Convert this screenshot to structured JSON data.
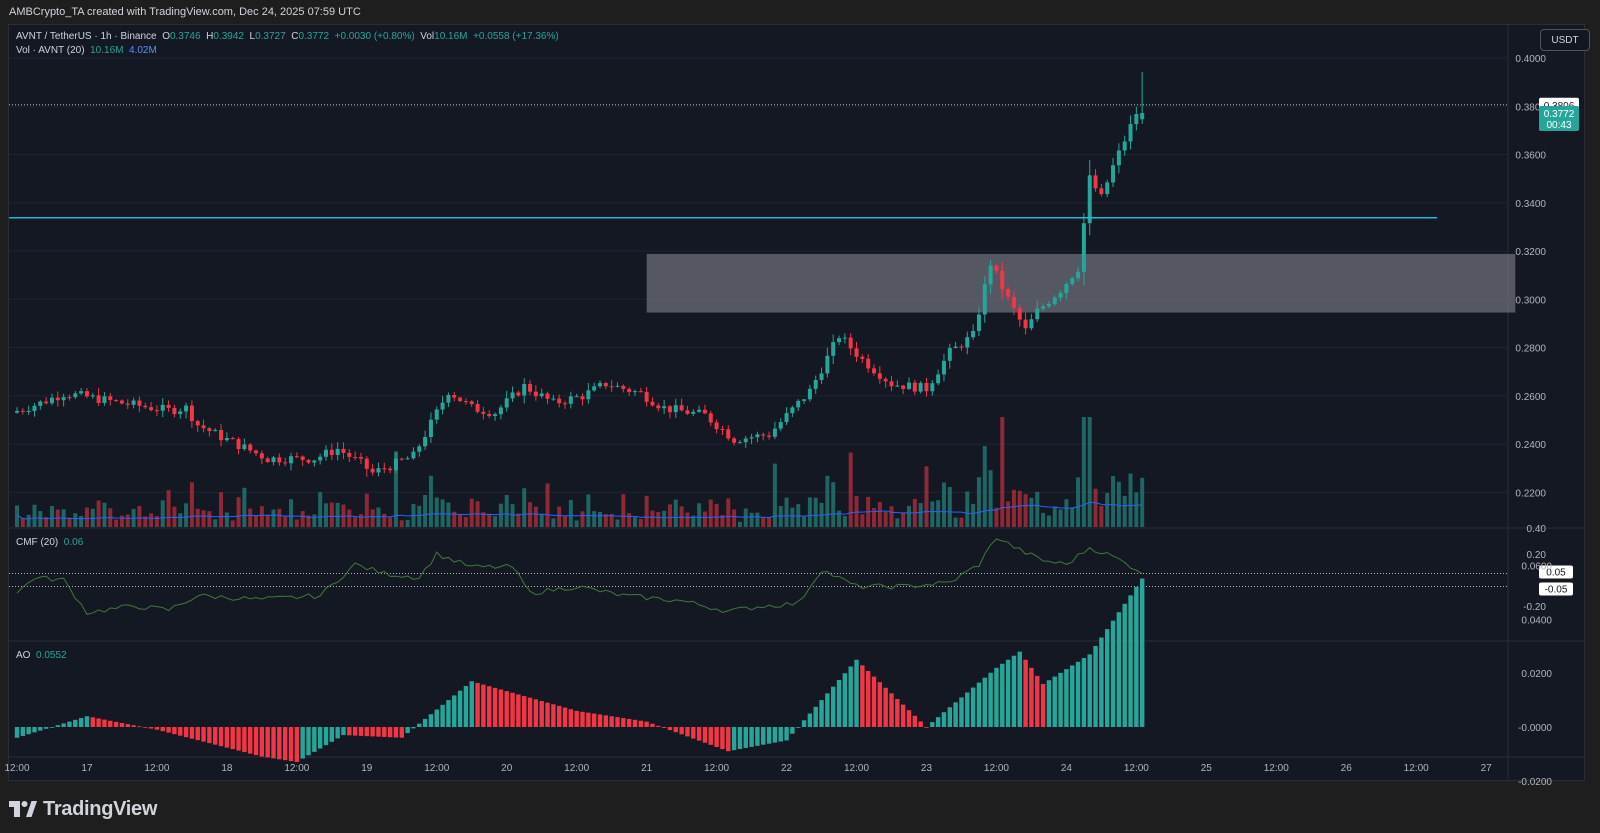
{
  "header": {
    "caption": "AMBCrypto_TA created with TradingView.com, Dec 24, 2025 07:59 UTC"
  },
  "legend": {
    "symbol": "AVNT / TetherUS · 1h · Binance",
    "open_label": "O",
    "open": "0.3746",
    "high_label": "H",
    "high": "0.3942",
    "low_label": "L",
    "low": "0.3727",
    "close_label": "C",
    "close": "0.3772",
    "change": "+0.0030 (+0.80%)",
    "vol_label": "Vol",
    "vol": "10.16M",
    "vol_change": "+0.0558 (+17.36%)",
    "vol_study": "Vol · AVNT (20)",
    "vol_value": "10.16M",
    "vol_ma": "4.02M",
    "cmf_label": "CMF (20)",
    "cmf_value": "0.06",
    "ao_label": "AO",
    "ao_value": "0.0552"
  },
  "currency_button": "USDT",
  "price_axis": {
    "ticks": [
      "0.4000",
      "0.3800",
      "0.3600",
      "0.3400",
      "0.3200",
      "0.3000",
      "0.2800",
      "0.2600",
      "0.2400",
      "0.2200"
    ],
    "marker_dotted": "0.3806",
    "marker_last": "0.3772",
    "marker_countdown": "00:43"
  },
  "cmf_axis": {
    "ticks": [
      "0.40",
      "0.20",
      "-0.20"
    ],
    "marker_upper": "0.05",
    "marker_lower": "-0.05"
  },
  "ao_axis": {
    "ticks": [
      "0.0600",
      "0.0400",
      "0.0200",
      "-0.0000",
      "-0.0200"
    ]
  },
  "time_axis": {
    "ticks": [
      "12:00",
      "17",
      "12:00",
      "18",
      "12:00",
      "19",
      "12:00",
      "20",
      "12:00",
      "21",
      "12:00",
      "22",
      "12:00",
      "23",
      "12:00",
      "24",
      "12:00",
      "25",
      "12:00",
      "26",
      "12:00",
      "27"
    ]
  },
  "colors": {
    "up": "#26a69a",
    "down": "#f23645",
    "horizontal_line": "#22b8d8",
    "zone_fill": "#787b86",
    "volume_ma": "#2962ff",
    "cmf_line": "#3f7a3a"
  },
  "footer": {
    "brand": "TradingView"
  },
  "chart_data": [
    {
      "type": "candlestick",
      "title": "AVNT / TetherUS · 1h · Binance",
      "interval": "1h",
      "x_range": [
        "Dec 16 12:00",
        "Dec 27 12:00"
      ],
      "last_candle": "Dec 24 13:00",
      "ylim": [
        0.212,
        0.404
      ],
      "grid": true,
      "waypoints": [
        {
          "t": "Dec 16 12:00",
          "price": 0.253
        },
        {
          "t": "Dec 16 17:00",
          "price": 0.257
        },
        {
          "t": "Dec 16 21:00",
          "price": 0.261
        },
        {
          "t": "Dec 17 00:00",
          "price": 0.26
        },
        {
          "t": "Dec 17 07:00",
          "price": 0.257
        },
        {
          "t": "Dec 17 15:00",
          "price": 0.254
        },
        {
          "t": "Dec 17 18:00",
          "price": 0.255
        },
        {
          "t": "Dec 17 20:00",
          "price": 0.248
        },
        {
          "t": "Dec 18 00:00",
          "price": 0.243
        },
        {
          "t": "Dec 18 08:00",
          "price": 0.234
        },
        {
          "t": "Dec 18 16:00",
          "price": 0.234
        },
        {
          "t": "Dec 18 20:00",
          "price": 0.238
        },
        {
          "t": "Dec 19 00:00",
          "price": 0.232
        },
        {
          "t": "Dec 19 02:00",
          "price": 0.228
        },
        {
          "t": "Dec 19 09:00",
          "price": 0.235
        },
        {
          "t": "Dec 19 15:00",
          "price": 0.262
        },
        {
          "t": "Dec 19 19:00",
          "price": 0.255
        },
        {
          "t": "Dec 19 23:00",
          "price": 0.253
        },
        {
          "t": "Dec 20 04:00",
          "price": 0.264
        },
        {
          "t": "Dec 20 09:00",
          "price": 0.257
        },
        {
          "t": "Dec 20 14:00",
          "price": 0.26
        },
        {
          "t": "Dec 20 18:00",
          "price": 0.265
        },
        {
          "t": "Dec 21 00:00",
          "price": 0.261
        },
        {
          "t": "Dec 21 04:00",
          "price": 0.255
        },
        {
          "t": "Dec 21 11:00",
          "price": 0.252
        },
        {
          "t": "Dec 21 16:00",
          "price": 0.242
        },
        {
          "t": "Dec 21 22:00",
          "price": 0.244
        },
        {
          "t": "Dec 22 05:00",
          "price": 0.262
        },
        {
          "t": "Dec 22 10:00",
          "price": 0.285
        },
        {
          "t": "Dec 22 14:00",
          "price": 0.275
        },
        {
          "t": "Dec 22 19:00",
          "price": 0.265
        },
        {
          "t": "Dec 23 01:00",
          "price": 0.263
        },
        {
          "t": "Dec 23 05:00",
          "price": 0.278
        },
        {
          "t": "Dec 23 09:00",
          "price": 0.285
        },
        {
          "t": "Dec 23 12:00",
          "price": 0.315
        },
        {
          "t": "Dec 23 15:00",
          "price": 0.3
        },
        {
          "t": "Dec 23 18:00",
          "price": 0.287
        },
        {
          "t": "Dec 23 20:00",
          "price": 0.295
        },
        {
          "t": "Dec 24 00:00",
          "price": 0.304
        },
        {
          "t": "Dec 24 03:00",
          "price": 0.313
        },
        {
          "t": "Dec 24 05:00",
          "price": 0.35
        },
        {
          "t": "Dec 24 07:00",
          "price": 0.342
        },
        {
          "t": "Dec 24 09:00",
          "price": 0.355
        },
        {
          "t": "Dec 24 11:00",
          "price": 0.366
        },
        {
          "t": "Dec 24 13:00",
          "price": 0.3772
        }
      ],
      "last_ohlc": {
        "open": 0.3746,
        "high": 0.3942,
        "low": 0.3727,
        "close": 0.3772
      },
      "annotations": {
        "horizontal_line": 0.3338,
        "zone": {
          "from": "Dec 21 00:00",
          "to": "Dec 27 05:00",
          "low": 0.2945,
          "high": 0.3188
        },
        "dotted_price_line": 0.3806
      }
    },
    {
      "type": "bar",
      "title": "Vol · AVNT (20)",
      "series": [
        {
          "name": "Vol",
          "last": "10.16M"
        },
        {
          "name": "MA (20)",
          "last": "4.02M"
        }
      ]
    },
    {
      "type": "line",
      "title": "CMF (20)",
      "ylim": [
        -0.38,
        0.42
      ],
      "reference_lines": [
        0.05,
        -0.05
      ],
      "waypoints": [
        {
          "t": "Dec 16 12:00",
          "value": -0.1
        },
        {
          "t": "Dec 16 15:00",
          "value": 0.02
        },
        {
          "t": "Dec 16 20:00",
          "value": 0.0
        },
        {
          "t": "Dec 17 00:00",
          "value": -0.25
        },
        {
          "t": "Dec 17 08:00",
          "value": -0.2
        },
        {
          "t": "Dec 17 14:00",
          "value": -0.23
        },
        {
          "t": "Dec 17 19:00",
          "value": -0.12
        },
        {
          "t": "Dec 18 06:00",
          "value": -0.15
        },
        {
          "t": "Dec 18 16:00",
          "value": -0.12
        },
        {
          "t": "Dec 18 22:00",
          "value": 0.12
        },
        {
          "t": "Dec 19 03:00",
          "value": 0.05
        },
        {
          "t": "Dec 19 09:00",
          "value": 0.02
        },
        {
          "t": "Dec 19 12:00",
          "value": 0.2
        },
        {
          "t": "Dec 19 18:00",
          "value": 0.1
        },
        {
          "t": "Dec 20 01:00",
          "value": 0.1
        },
        {
          "t": "Dec 20 04:00",
          "value": -0.1
        },
        {
          "t": "Dec 20 12:00",
          "value": -0.05
        },
        {
          "t": "Dec 20 20:00",
          "value": -0.12
        },
        {
          "t": "Dec 21 06:00",
          "value": -0.16
        },
        {
          "t": "Dec 21 14:00",
          "value": -0.24
        },
        {
          "t": "Dec 21 20:00",
          "value": -0.2
        },
        {
          "t": "Dec 22 02:00",
          "value": -0.18
        },
        {
          "t": "Dec 22 06:00",
          "value": 0.08
        },
        {
          "t": "Dec 22 12:00",
          "value": -0.05
        },
        {
          "t": "Dec 22 20:00",
          "value": -0.05
        },
        {
          "t": "Dec 23 04:00",
          "value": -0.02
        },
        {
          "t": "Dec 23 09:00",
          "value": 0.12
        },
        {
          "t": "Dec 23 12:00",
          "value": 0.33
        },
        {
          "t": "Dec 23 16:00",
          "value": 0.23
        },
        {
          "t": "Dec 23 20:00",
          "value": 0.15
        },
        {
          "t": "Dec 24 00:00",
          "value": 0.12
        },
        {
          "t": "Dec 24 04:00",
          "value": 0.25
        },
        {
          "t": "Dec 24 08:00",
          "value": 0.18
        },
        {
          "t": "Dec 24 13:00",
          "value": 0.06
        }
      ]
    },
    {
      "type": "bar",
      "title": "AO",
      "ylim": [
        -0.021,
        0.061
      ],
      "waypoints": [
        {
          "t": "Dec 16 12:00",
          "value": -0.004
        },
        {
          "t": "Dec 17 00:00",
          "value": 0.004
        },
        {
          "t": "Dec 17 12:00",
          "value": -0.001
        },
        {
          "t": "Dec 18 06:00",
          "value": -0.011
        },
        {
          "t": "Dec 18 12:00",
          "value": -0.013
        },
        {
          "t": "Dec 18 20:00",
          "value": -0.003
        },
        {
          "t": "Dec 19 06:00",
          "value": -0.004
        },
        {
          "t": "Dec 19 18:00",
          "value": 0.017
        },
        {
          "t": "Dec 20 12:00",
          "value": 0.006
        },
        {
          "t": "Dec 21 00:00",
          "value": 0.002
        },
        {
          "t": "Dec 21 14:00",
          "value": -0.009
        },
        {
          "t": "Dec 22 00:00",
          "value": -0.005
        },
        {
          "t": "Dec 22 12:00",
          "value": 0.025
        },
        {
          "t": "Dec 23 00:00",
          "value": 0.0
        },
        {
          "t": "Dec 23 12:00",
          "value": 0.022
        },
        {
          "t": "Dec 23 16:00",
          "value": 0.028
        },
        {
          "t": "Dec 23 20:00",
          "value": 0.016
        },
        {
          "t": "Dec 24 04:00",
          "value": 0.027
        },
        {
          "t": "Dec 24 13:00",
          "value": 0.0552
        }
      ]
    }
  ]
}
